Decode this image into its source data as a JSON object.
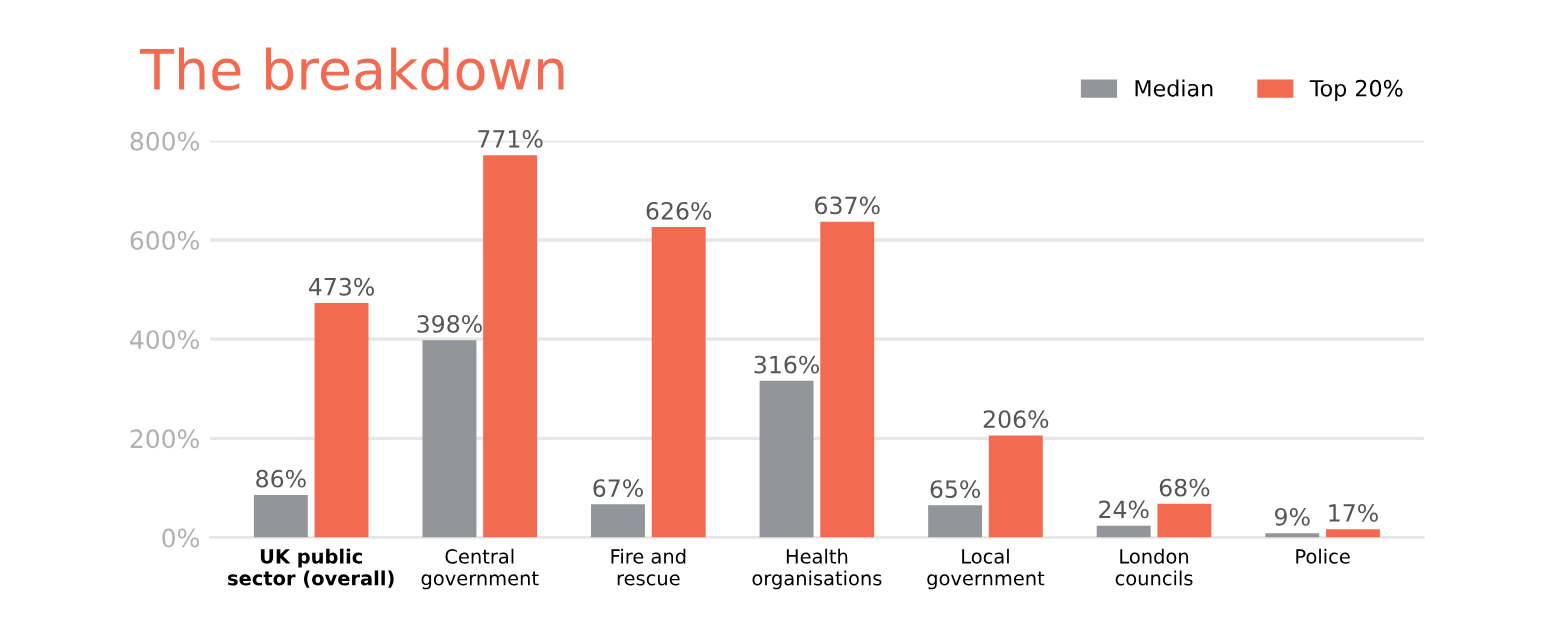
{
  "chart_data": {
    "type": "bar",
    "title": "The breakdown",
    "categories": [
      "UK public\nsector (overall)",
      "Central\ngovernment",
      "Fire and\nrescue",
      "Health\norganisations",
      "Local\ngovernment",
      "London\ncouncils",
      "Police"
    ],
    "series": [
      {
        "name": "Median",
        "color": "#939598",
        "values": [
          86,
          398,
          67,
          316,
          65,
          24,
          9
        ],
        "value_labels": [
          "86%",
          "398%",
          "67%",
          "316%",
          "65%",
          "24%",
          "9%"
        ]
      },
      {
        "name": "Top 20%",
        "color": "#f26b50",
        "values": [
          473,
          771,
          626,
          637,
          206,
          68,
          17
        ],
        "value_labels": [
          "473%",
          "771%",
          "626%",
          "637%",
          "206%",
          "68%",
          "17%"
        ]
      }
    ],
    "ylim": [
      0,
      800
    ],
    "yticks": [
      {
        "value": 0,
        "label": "0%"
      },
      {
        "value": 200,
        "label": "200%"
      },
      {
        "value": 400,
        "label": "400%"
      },
      {
        "value": 600,
        "label": "600%"
      },
      {
        "value": 800,
        "label": "800%"
      }
    ],
    "grid": "y",
    "legend": "top right"
  }
}
